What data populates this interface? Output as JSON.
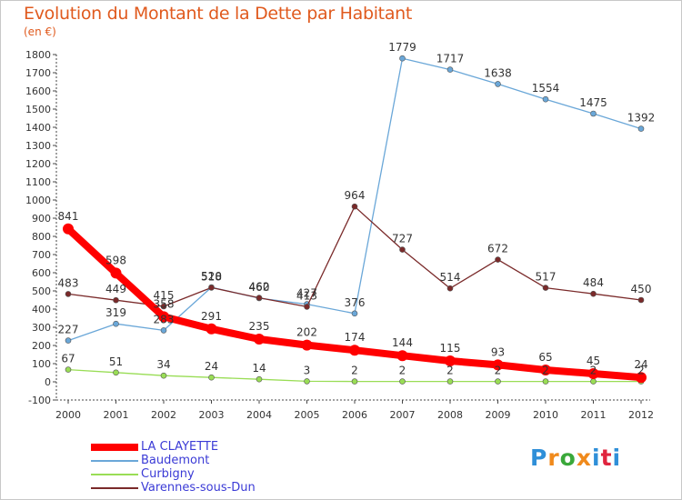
{
  "title": "Evolution du Montant de la Dette par Habitant",
  "subtitle": "(en €)",
  "logo": {
    "text": "Proxiti",
    "colors": [
      "#2f8fd8",
      "#f08a1c",
      "#3aa83a",
      "#f08a1c",
      "#2f8fd8",
      "#e0243e",
      "#2f8fd8"
    ]
  },
  "chart_data": {
    "type": "line",
    "title": "Evolution du Montant de la Dette par Habitant",
    "ylabel": "(en €)",
    "xlabel": "",
    "x": [
      "2000",
      "2001",
      "2002",
      "2003",
      "2004",
      "2005",
      "2006",
      "2007",
      "2008",
      "2009",
      "2010",
      "2011",
      "2012"
    ],
    "ylim": [
      -100,
      1800
    ],
    "yticks": [
      -100,
      0,
      100,
      200,
      300,
      400,
      500,
      600,
      700,
      800,
      900,
      1000,
      1100,
      1200,
      1300,
      1400,
      1500,
      1600,
      1700,
      1800
    ],
    "grid": false,
    "legend": "bottom-left",
    "series": [
      {
        "name": "LA CLAYETTE",
        "color": "#ff0000",
        "values": [
          841,
          598,
          358,
          291,
          235,
          202,
          174,
          144,
          115,
          93,
          65,
          45,
          24
        ]
      },
      {
        "name": "Baudemont",
        "color": "#6aa7d8",
        "values": [
          227,
          319,
          283,
          520,
          460,
          427,
          376,
          1779,
          1717,
          1638,
          1554,
          1475,
          1392
        ]
      },
      {
        "name": "Curbigny",
        "color": "#99dd55",
        "values": [
          67,
          51,
          34,
          24,
          14,
          3,
          2,
          2,
          2,
          2,
          2,
          2,
          2
        ]
      },
      {
        "name": "Varennes-sous-Dun",
        "color": "#7a2a2a",
        "values": [
          483,
          449,
          415,
          518,
          462,
          413,
          964,
          727,
          514,
          672,
          517,
          484,
          450
        ]
      }
    ]
  }
}
